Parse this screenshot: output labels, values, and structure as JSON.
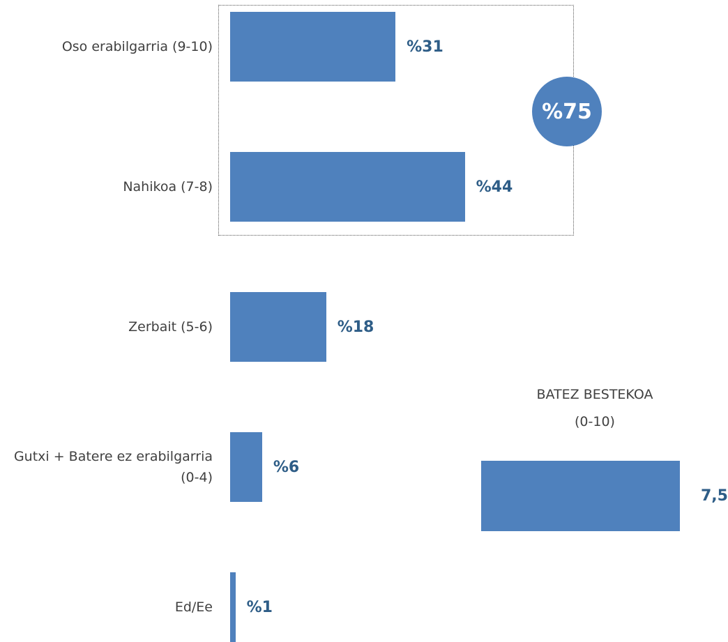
{
  "chart_data": [
    {
      "type": "bar",
      "orientation": "horizontal",
      "categories": [
        "Oso erabilgarria (9-10)",
        "Nahikoa (7-8)",
        "Zerbait (5-6)",
        "Gutxi + Batere ez erabilgarria (0-4)",
        "Ed/Ee"
      ],
      "values": [
        31,
        44,
        18,
        6,
        1
      ],
      "value_labels": [
        "%31",
        "%44",
        "%18",
        "%6",
        "%1"
      ],
      "color": "#4f81bd",
      "annotation": "%75"
    },
    {
      "type": "bar",
      "orientation": "horizontal",
      "title": "BATEZ BESTEKOA",
      "subtitle": "(0-10)",
      "categories": [
        null
      ],
      "values": [
        7.5
      ],
      "value_labels": [
        "7,5"
      ],
      "color": "#4f81bd"
    }
  ]
}
